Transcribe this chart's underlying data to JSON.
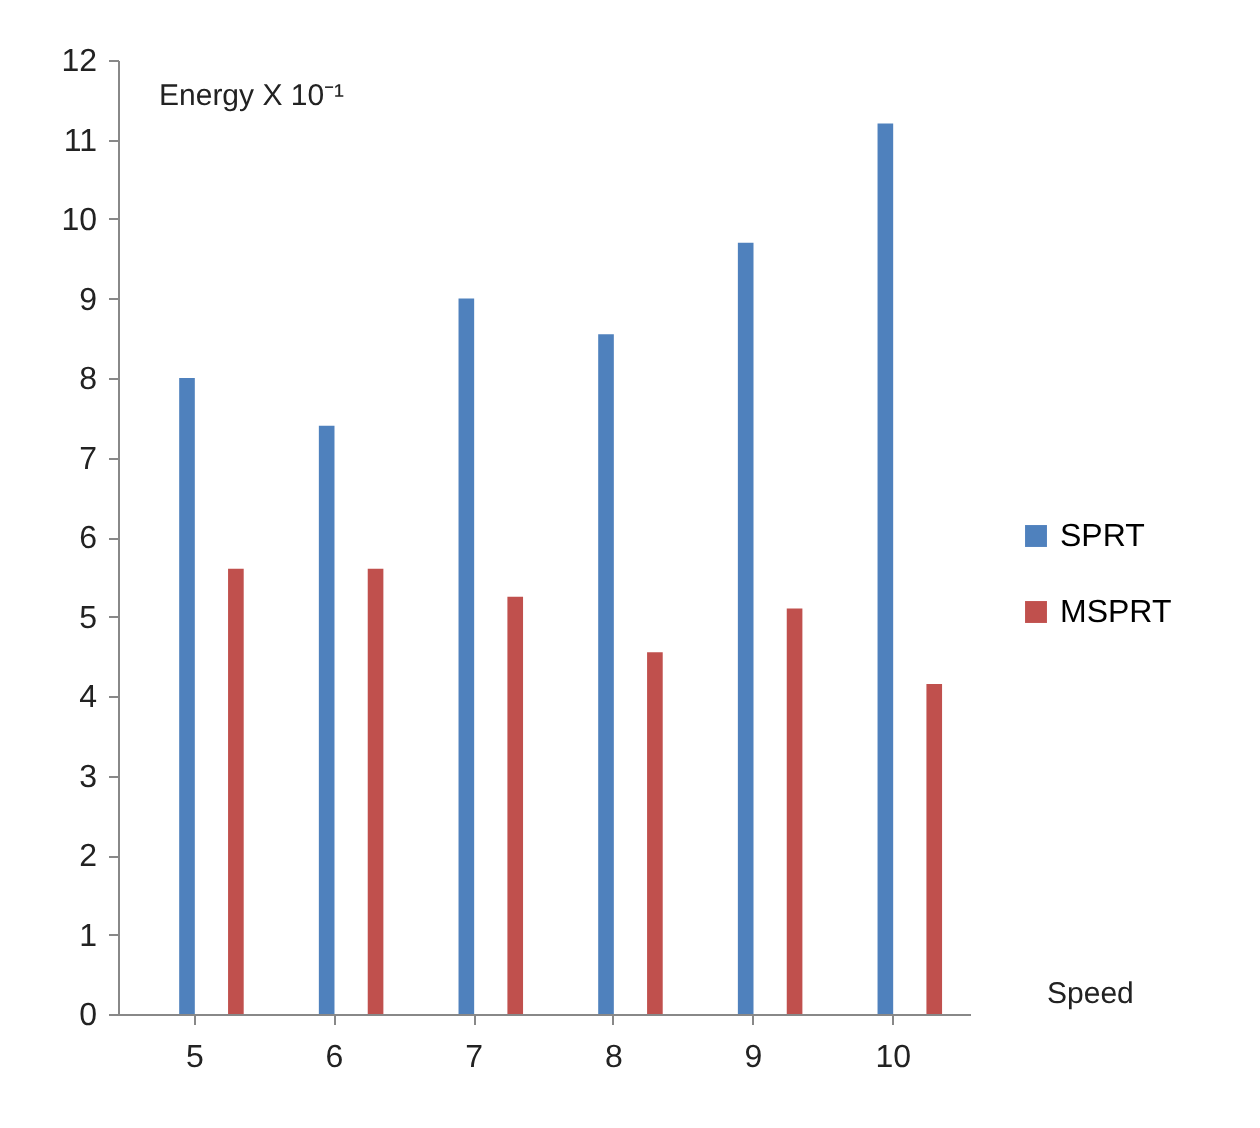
{
  "chart_data": {
    "type": "bar",
    "ylabel": "Energy X 10⁻¹",
    "xlabel": "Speed",
    "categories": [
      "5",
      "6",
      "7",
      "8",
      "9",
      "10"
    ],
    "series": [
      {
        "name": "SPRT",
        "color": "#4f81bd",
        "values": [
          8.0,
          7.4,
          9.0,
          8.55,
          9.7,
          11.2
        ]
      },
      {
        "name": "MSPRT",
        "color": "#c0504d",
        "values": [
          5.6,
          5.6,
          5.25,
          4.55,
          5.1,
          4.15
        ]
      }
    ],
    "ylim": [
      0,
      12
    ],
    "yticks": [
      0,
      1,
      2,
      3,
      4,
      5,
      6,
      7,
      8,
      9,
      10,
      11,
      12
    ],
    "grid": false,
    "legend": "right"
  }
}
